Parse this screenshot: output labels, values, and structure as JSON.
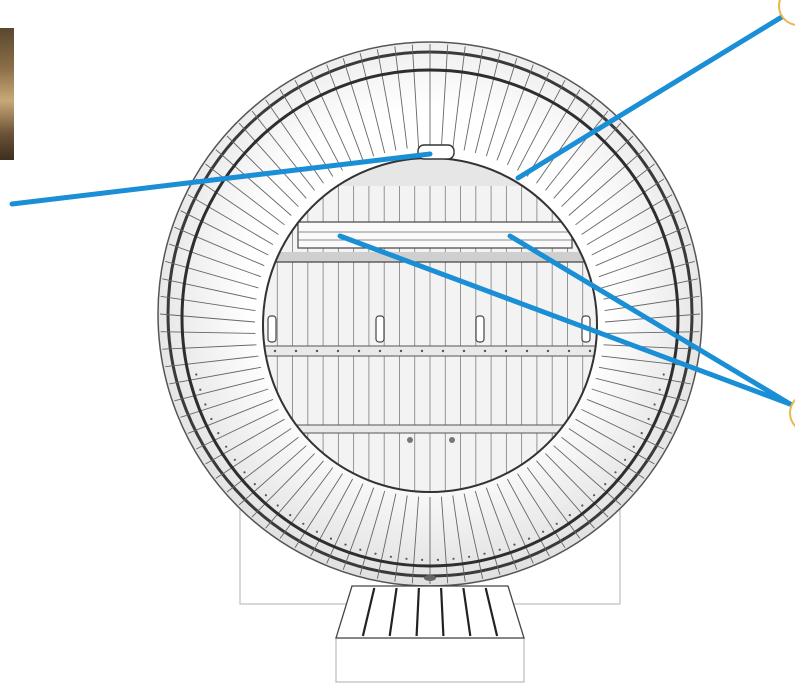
{
  "image": {
    "description_name": "barrel-sauna-front-section",
    "thumbnail": "wood-interior-thumbnail",
    "colors": {
      "leader_line": "#1a8fd6",
      "callout_ring": "#e8b84a",
      "stroke": "#444444",
      "stave_fill": "#fbfbfb",
      "inner_fill": "#f1f1f1"
    },
    "stave_count": 96,
    "inner_plank_count": 22,
    "step_count": 7
  }
}
